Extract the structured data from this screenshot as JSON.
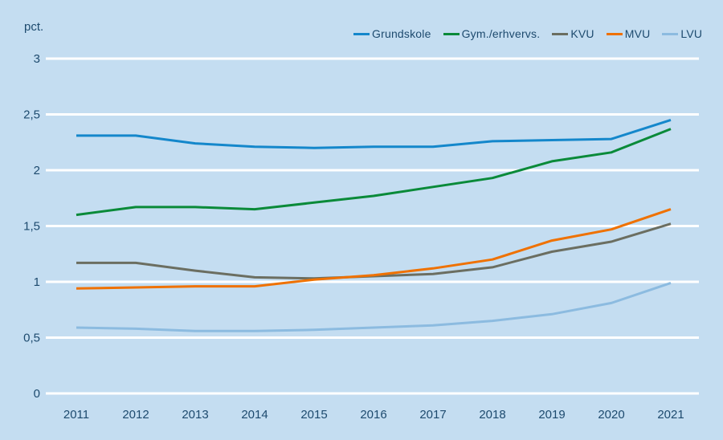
{
  "unit_label": "pct.",
  "colors": {
    "background": "#c4ddf1",
    "gridline": "#ffffff",
    "text": "#1d4a6e",
    "grundskole": "#1487cb",
    "gym_erhvervs": "#0a8a39",
    "kvu": "#6b6e61",
    "mvu": "#ef7100",
    "lvu": "#8cbbe0"
  },
  "chart_data": {
    "type": "line",
    "title": "",
    "ylabel": "pct.",
    "xlabel": "",
    "ylim": [
      0,
      3
    ],
    "grid": "horizontal",
    "legend_position": "top-right",
    "yticks": [
      0,
      0.5,
      1,
      1.5,
      2,
      2.5,
      3
    ],
    "ytick_labels": [
      "0",
      "0,5",
      "1",
      "1,5",
      "2",
      "2,5",
      "3"
    ],
    "x": [
      2011,
      2012,
      2013,
      2014,
      2015,
      2016,
      2017,
      2018,
      2019,
      2020,
      2021
    ],
    "xtick_labels": [
      "2011",
      "2012",
      "2013",
      "2014",
      "2015",
      "2016",
      "2017",
      "2018",
      "2019",
      "2020",
      "2021"
    ],
    "series": [
      {
        "name": "Grundskole",
        "color": "#1487cb",
        "values": [
          2.31,
          2.31,
          2.24,
          2.21,
          2.2,
          2.21,
          2.21,
          2.26,
          2.27,
          2.28,
          2.45
        ]
      },
      {
        "name": "Gym./erhvervs.",
        "color": "#0a8a39",
        "values": [
          1.6,
          1.67,
          1.67,
          1.65,
          1.71,
          1.77,
          1.85,
          1.93,
          2.08,
          2.16,
          2.37
        ]
      },
      {
        "name": "KVU",
        "color": "#6b6e61",
        "values": [
          1.17,
          1.17,
          1.1,
          1.04,
          1.03,
          1.05,
          1.07,
          1.13,
          1.27,
          1.36,
          1.52
        ]
      },
      {
        "name": "MVU",
        "color": "#ef7100",
        "values": [
          0.94,
          0.95,
          0.96,
          0.96,
          1.02,
          1.06,
          1.12,
          1.2,
          1.37,
          1.47,
          1.65
        ]
      },
      {
        "name": "LVU",
        "color": "#8cbbe0",
        "values": [
          0.59,
          0.58,
          0.56,
          0.56,
          0.57,
          0.59,
          0.61,
          0.65,
          0.71,
          0.81,
          0.99
        ]
      }
    ]
  }
}
